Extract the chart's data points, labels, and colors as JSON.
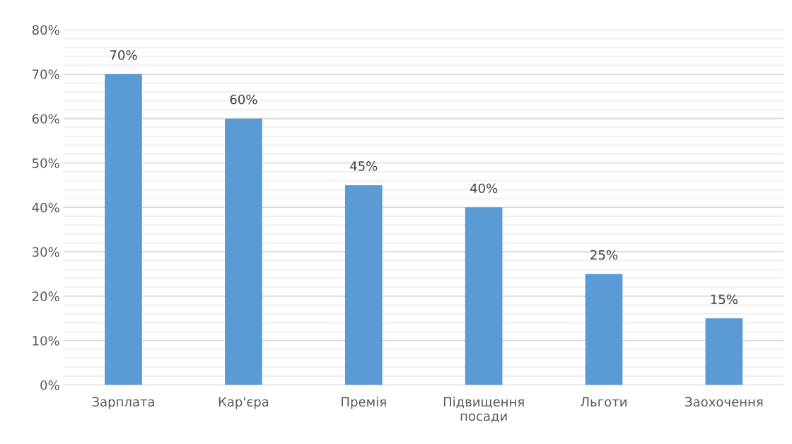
{
  "chart_data": {
    "type": "bar",
    "categories": [
      "Зарплата",
      "Кар'єра",
      "Премія",
      "Підвищення\nпосади",
      "Льготи",
      "Заохочення"
    ],
    "values": [
      70,
      60,
      45,
      40,
      25,
      15
    ],
    "value_labels": [
      "70%",
      "60%",
      "45%",
      "40%",
      "25%",
      "15%"
    ],
    "color": "#5b9bd5",
    "ylim": [
      0,
      80
    ],
    "yticks": [
      {
        "value": 0,
        "label": "0%"
      },
      {
        "value": 2,
        "label": null
      },
      {
        "value": 4,
        "label": null
      },
      {
        "value": 6,
        "label": null
      },
      {
        "value": 8,
        "label": null
      },
      {
        "value": 10,
        "label": "10%"
      },
      {
        "value": 12,
        "label": null
      },
      {
        "value": 14,
        "label": null
      },
      {
        "value": 16,
        "label": null
      },
      {
        "value": 18,
        "label": null
      },
      {
        "value": 20,
        "label": "20%"
      },
      {
        "value": 22,
        "label": null
      },
      {
        "value": 24,
        "label": null
      },
      {
        "value": 26,
        "label": null
      },
      {
        "value": 28,
        "label": null
      },
      {
        "value": 30,
        "label": "30%"
      },
      {
        "value": 32,
        "label": null
      },
      {
        "value": 34,
        "label": null
      },
      {
        "value": 36,
        "label": null
      },
      {
        "value": 38,
        "label": null
      },
      {
        "value": 40,
        "label": "40%"
      },
      {
        "value": 42,
        "label": null
      },
      {
        "value": 44,
        "label": null
      },
      {
        "value": 46,
        "label": null
      },
      {
        "value": 48,
        "label": null
      },
      {
        "value": 50,
        "label": "50%"
      },
      {
        "value": 52,
        "label": null
      },
      {
        "value": 54,
        "label": null
      },
      {
        "value": 56,
        "label": null
      },
      {
        "value": 58,
        "label": null
      },
      {
        "value": 60,
        "label": "60%"
      },
      {
        "value": 62,
        "label": null
      },
      {
        "value": 64,
        "label": null
      },
      {
        "value": 66,
        "label": null
      },
      {
        "value": 68,
        "label": null
      },
      {
        "value": 70,
        "label": "70%"
      },
      {
        "value": 72,
        "label": null
      },
      {
        "value": 74,
        "label": null
      },
      {
        "value": 76,
        "label": null
      },
      {
        "value": 78,
        "label": null
      },
      {
        "value": 80,
        "label": "80%"
      }
    ],
    "grid": "y"
  }
}
